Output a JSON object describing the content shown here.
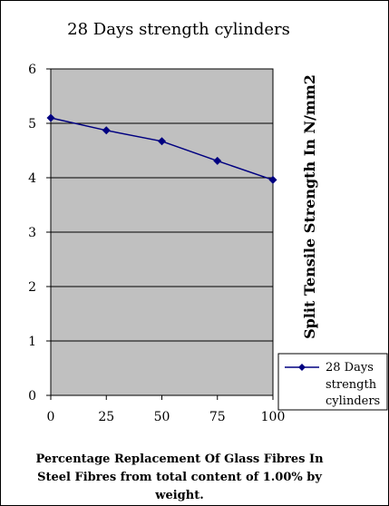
{
  "chart_data": {
    "type": "line",
    "title": "28 Days strength cylinders",
    "xlabel_lines": [
      "Percentage  Replacement Of Glass Fibres In",
      "Steel Fibres from total content of 1.00%  by",
      "weight."
    ],
    "ylabel": "Split Tensile Strength In N/mm2",
    "x": [
      0,
      25,
      50,
      75,
      100
    ],
    "x_tick_labels": [
      "0",
      "25",
      "50",
      "75",
      "100"
    ],
    "y_tick_labels": [
      "0",
      "1",
      "2",
      "3",
      "4",
      "5",
      "6"
    ],
    "xlim": [
      0,
      100
    ],
    "ylim": [
      0,
      6
    ],
    "grid": "horizontal",
    "legend_position": "right",
    "series": [
      {
        "name_lines": [
          "28 Days",
          "strength",
          "cylinders"
        ],
        "values": [
          5.1,
          4.87,
          4.67,
          4.31,
          3.96
        ],
        "color": "#000080",
        "marker": "diamond"
      }
    ],
    "plot_background": "#c0c0c0"
  }
}
